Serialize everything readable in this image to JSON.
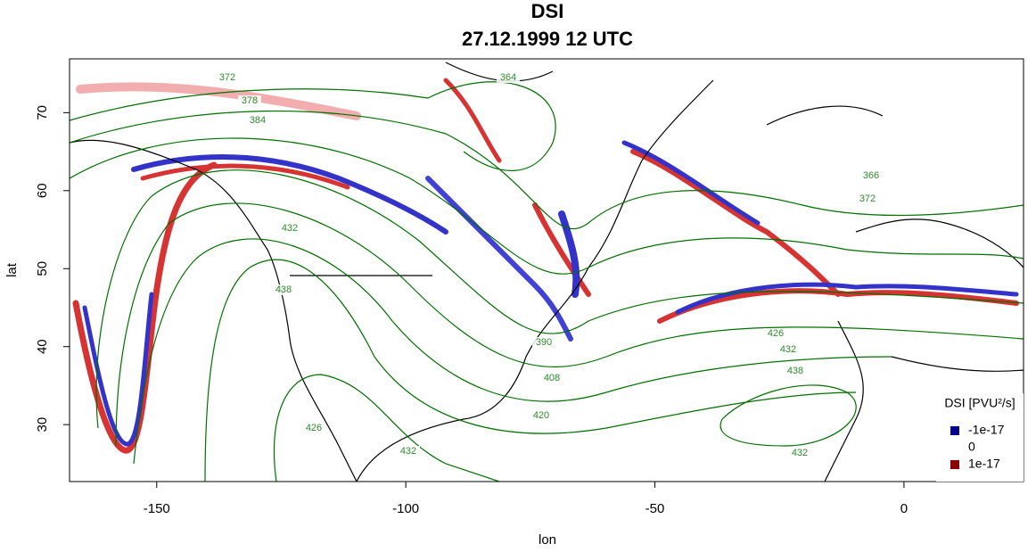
{
  "chart_data": {
    "type": "field",
    "title": "DSI",
    "subtitle": "27.12.1999 12 UTC",
    "x_label": "lon",
    "y_label": "lat",
    "xlim": [
      -167.5,
      24
    ],
    "ylim": [
      22.7,
      76.9
    ],
    "xticks": [
      -150,
      -100,
      -50,
      0
    ],
    "yticks": [
      30,
      40,
      50,
      60,
      70
    ],
    "legend_title": "DSI [PVU²/s]",
    "legend": [
      {
        "label": "-1e-17",
        "color": "#00008b"
      },
      {
        "label": "0",
        "color": "#ffffff"
      },
      {
        "label": "1e-17",
        "color": "#8b0000"
      }
    ],
    "contour_color": "#007000",
    "contour_labels": [
      372,
      378,
      384,
      364,
      432,
      438,
      390,
      408,
      420,
      426,
      432,
      426,
      432,
      438,
      366,
      372,
      432
    ]
  }
}
